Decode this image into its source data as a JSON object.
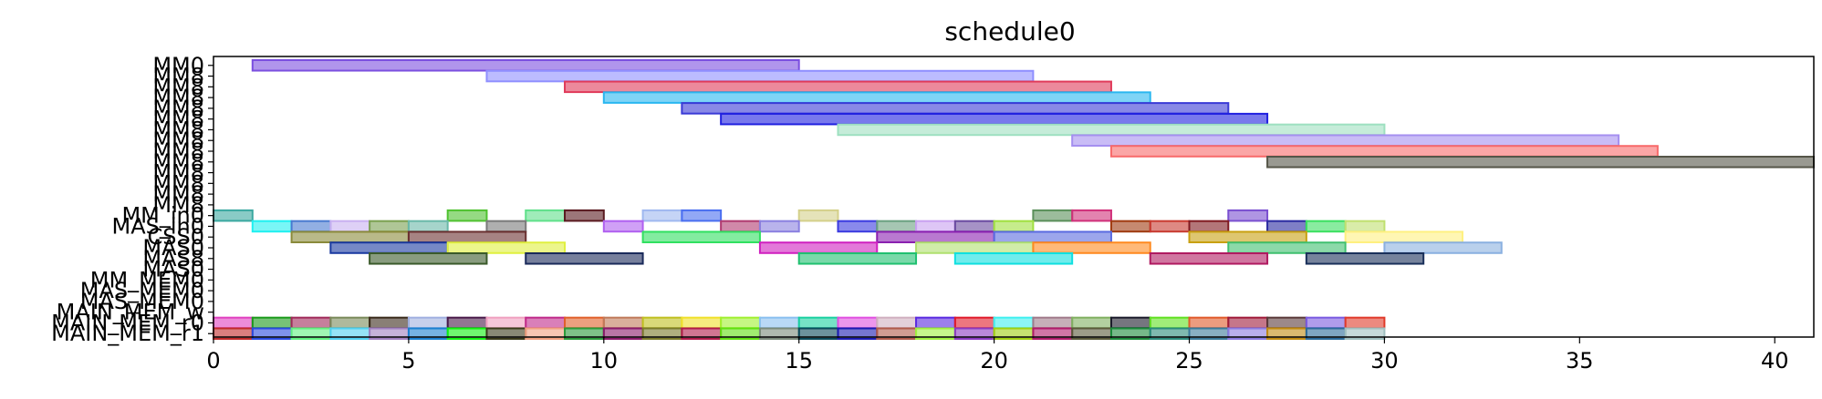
{
  "chart_data": {
    "type": "gantt",
    "title": "schedule0",
    "xlabel": "",
    "ylabel": "",
    "xlim": [
      0,
      41
    ],
    "x_ticks": [
      0,
      5,
      10,
      15,
      20,
      25,
      30,
      35,
      40
    ],
    "grid": false,
    "legend": "none",
    "rows": [
      "MM0",
      "MM8",
      "MM8",
      "MM8",
      "MM8",
      "MM8",
      "MM8",
      "MM8",
      "MM8",
      "MM8",
      "MM8",
      "MM8",
      "MM8",
      "MM8",
      "MM_in0",
      "MAS_in0",
      "CSS0",
      "MAS0",
      "MAS8",
      "MAS0",
      "MM_MEM0",
      "MAS_MEM0",
      "MAS_MEM0",
      "MAIN_MEM_w",
      "MAIN_MEM_r0",
      "MAIN_MEM_r1"
    ],
    "tasks": [
      {
        "row": 0,
        "start": 1,
        "end": 15,
        "color": "#7b4fe0"
      },
      {
        "row": 1,
        "start": 7,
        "end": 21,
        "color": "#8f8fff"
      },
      {
        "row": 2,
        "start": 9,
        "end": 23,
        "color": "#e03a5a"
      },
      {
        "row": 3,
        "start": 10,
        "end": 24,
        "color": "#2ab7f0"
      },
      {
        "row": 4,
        "start": 12,
        "end": 26,
        "color": "#3a3ad6"
      },
      {
        "row": 5,
        "start": 13,
        "end": 27,
        "color": "#2020e0"
      },
      {
        "row": 6,
        "start": 16,
        "end": 30,
        "color": "#9ee0c0"
      },
      {
        "row": 7,
        "start": 22,
        "end": 36,
        "color": "#a58ff0"
      },
      {
        "row": 8,
        "start": 23,
        "end": 37,
        "color": "#f86a6a"
      },
      {
        "row": 9,
        "start": 27,
        "end": 41,
        "color": "#555548"
      },
      {
        "row": 14,
        "start": 0,
        "end": 1,
        "color": "#3aa8a0"
      },
      {
        "row": 14,
        "start": 6,
        "end": 7,
        "color": "#4fc230"
      },
      {
        "row": 14,
        "start": 8,
        "end": 9,
        "color": "#5fe08a"
      },
      {
        "row": 14,
        "start": 9,
        "end": 10,
        "color": "#5a1a20"
      },
      {
        "row": 14,
        "start": 11,
        "end": 12,
        "color": "#9fb8f0"
      },
      {
        "row": 14,
        "start": 12,
        "end": 13,
        "color": "#4a6ef0"
      },
      {
        "row": 14,
        "start": 15,
        "end": 16,
        "color": "#d4d08a"
      },
      {
        "row": 14,
        "start": 21,
        "end": 22,
        "color": "#5a8f5a"
      },
      {
        "row": 14,
        "start": 22,
        "end": 23,
        "color": "#d0307a"
      },
      {
        "row": 14,
        "start": 26,
        "end": 27,
        "color": "#7a4fd0"
      },
      {
        "row": 15,
        "start": 1,
        "end": 2,
        "color": "#1ff0f0"
      },
      {
        "row": 15,
        "start": 2,
        "end": 3,
        "color": "#4a7ad0"
      },
      {
        "row": 15,
        "start": 3,
        "end": 4,
        "color": "#c8b0f0"
      },
      {
        "row": 15,
        "start": 4,
        "end": 5,
        "color": "#7aa050"
      },
      {
        "row": 15,
        "start": 5,
        "end": 6,
        "color": "#6ab8a8"
      },
      {
        "row": 15,
        "start": 7,
        "end": 8,
        "color": "#7a7a7a"
      },
      {
        "row": 15,
        "start": 10,
        "end": 11,
        "color": "#b060f0"
      },
      {
        "row": 15,
        "start": 13,
        "end": 14,
        "color": "#b03a70"
      },
      {
        "row": 15,
        "start": 14,
        "end": 15,
        "color": "#8a80e0"
      },
      {
        "row": 15,
        "start": 16,
        "end": 17,
        "color": "#3a3ae0"
      },
      {
        "row": 15,
        "start": 17,
        "end": 18,
        "color": "#6aa080"
      },
      {
        "row": 15,
        "start": 18,
        "end": 19,
        "color": "#c8a0f0"
      },
      {
        "row": 15,
        "start": 19,
        "end": 20,
        "color": "#6a4aa0"
      },
      {
        "row": 15,
        "start": 20,
        "end": 21,
        "color": "#a0e040"
      },
      {
        "row": 15,
        "start": 23,
        "end": 24,
        "color": "#a03a10"
      },
      {
        "row": 15,
        "start": 24,
        "end": 25,
        "color": "#c83a30"
      },
      {
        "row": 15,
        "start": 25,
        "end": 26,
        "color": "#801a20"
      },
      {
        "row": 15,
        "start": 27,
        "end": 28,
        "color": "#2a2aa0"
      },
      {
        "row": 15,
        "start": 28,
        "end": 29,
        "color": "#3ae060"
      },
      {
        "row": 15,
        "start": 29,
        "end": 30,
        "color": "#c0e070"
      },
      {
        "row": 16,
        "start": 2,
        "end": 5,
        "color": "#8a8a3a"
      },
      {
        "row": 16,
        "start": 5,
        "end": 8,
        "color": "#6a3030"
      },
      {
        "row": 16,
        "start": 11,
        "end": 14,
        "color": "#30e060"
      },
      {
        "row": 16,
        "start": 17,
        "end": 20,
        "color": "#8a20b0"
      },
      {
        "row": 16,
        "start": 20,
        "end": 23,
        "color": "#5a6ae0"
      },
      {
        "row": 16,
        "start": 25,
        "end": 28,
        "color": "#c8a010"
      },
      {
        "row": 16,
        "start": 29,
        "end": 32,
        "color": "#fff080"
      },
      {
        "row": 17,
        "start": 3,
        "end": 6,
        "color": "#1a3aa0"
      },
      {
        "row": 17,
        "start": 6,
        "end": 9,
        "color": "#e0f040"
      },
      {
        "row": 17,
        "start": 14,
        "end": 17,
        "color": "#d020c0"
      },
      {
        "row": 17,
        "start": 18,
        "end": 21,
        "color": "#b0e070"
      },
      {
        "row": 17,
        "start": 21,
        "end": 24,
        "color": "#ff8a20"
      },
      {
        "row": 17,
        "start": 26,
        "end": 29,
        "color": "#40c070"
      },
      {
        "row": 17,
        "start": 30,
        "end": 33,
        "color": "#8ab0e0"
      },
      {
        "row": 18,
        "start": 4,
        "end": 7,
        "color": "#3a5a2a"
      },
      {
        "row": 18,
        "start": 8,
        "end": 11,
        "color": "#1a2a5a"
      },
      {
        "row": 18,
        "start": 15,
        "end": 18,
        "color": "#20c070"
      },
      {
        "row": 18,
        "start": 19,
        "end": 22,
        "color": "#10e0e0"
      },
      {
        "row": 18,
        "start": 24,
        "end": 27,
        "color": "#b01a60"
      },
      {
        "row": 18,
        "start": 28,
        "end": 31,
        "color": "#1a305a"
      },
      {
        "row": 24,
        "start": 0,
        "end": 1,
        "color": "#e040c0"
      },
      {
        "row": 24,
        "start": 1,
        "end": 2,
        "color": "#1a9a1a"
      },
      {
        "row": 24,
        "start": 2,
        "end": 3,
        "color": "#a02a5a"
      },
      {
        "row": 24,
        "start": 3,
        "end": 4,
        "color": "#7a8a5a"
      },
      {
        "row": 24,
        "start": 4,
        "end": 5,
        "color": "#3a2a1a"
      },
      {
        "row": 24,
        "start": 5,
        "end": 6,
        "color": "#a0b0e0"
      },
      {
        "row": 24,
        "start": 6,
        "end": 7,
        "color": "#4a1a4a"
      },
      {
        "row": 24,
        "start": 7,
        "end": 8,
        "color": "#f0a0c0"
      },
      {
        "row": 24,
        "start": 8,
        "end": 9,
        "color": "#c02a8a"
      },
      {
        "row": 24,
        "start": 9,
        "end": 10,
        "color": "#e0602a"
      },
      {
        "row": 24,
        "start": 10,
        "end": 11,
        "color": "#c07a5a"
      },
      {
        "row": 24,
        "start": 11,
        "end": 12,
        "color": "#c0c020"
      },
      {
        "row": 24,
        "start": 12,
        "end": 13,
        "color": "#f0e02a"
      },
      {
        "row": 24,
        "start": 13,
        "end": 14,
        "color": "#a0f030"
      },
      {
        "row": 24,
        "start": 14,
        "end": 15,
        "color": "#8ac0f0"
      },
      {
        "row": 24,
        "start": 15,
        "end": 16,
        "color": "#1ad0a0"
      },
      {
        "row": 24,
        "start": 16,
        "end": 17,
        "color": "#e050e0"
      },
      {
        "row": 24,
        "start": 17,
        "end": 18,
        "color": "#d0b0c0"
      },
      {
        "row": 24,
        "start": 18,
        "end": 19,
        "color": "#5a2ae0"
      },
      {
        "row": 24,
        "start": 19,
        "end": 20,
        "color": "#e01a2a"
      },
      {
        "row": 24,
        "start": 20,
        "end": 21,
        "color": "#40f0f0"
      },
      {
        "row": 24,
        "start": 21,
        "end": 22,
        "color": "#a07a8a"
      },
      {
        "row": 24,
        "start": 22,
        "end": 23,
        "color": "#80b060"
      },
      {
        "row": 24,
        "start": 23,
        "end": 24,
        "color": "#1a1a2a"
      },
      {
        "row": 24,
        "start": 24,
        "end": 25,
        "color": "#60e020"
      },
      {
        "row": 24,
        "start": 25,
        "end": 26,
        "color": "#e05a2a"
      },
      {
        "row": 24,
        "start": 26,
        "end": 27,
        "color": "#a01a3a"
      },
      {
        "row": 24,
        "start": 27,
        "end": 28,
        "color": "#5a3a3a"
      },
      {
        "row": 24,
        "start": 28,
        "end": 29,
        "color": "#7a5ae0"
      },
      {
        "row": 24,
        "start": 29,
        "end": 30,
        "color": "#e03a2a"
      },
      {
        "row": 25,
        "start": 0,
        "end": 1,
        "color": "#c02a2a"
      },
      {
        "row": 25,
        "start": 1,
        "end": 2,
        "color": "#2a4ae0"
      },
      {
        "row": 25,
        "start": 2,
        "end": 3,
        "color": "#60f080"
      },
      {
        "row": 25,
        "start": 3,
        "end": 4,
        "color": "#50d0f0"
      },
      {
        "row": 25,
        "start": 4,
        "end": 5,
        "color": "#a080c0"
      },
      {
        "row": 25,
        "start": 5,
        "end": 6,
        "color": "#1a80d0"
      },
      {
        "row": 25,
        "start": 6,
        "end": 7,
        "color": "#10f010"
      },
      {
        "row": 25,
        "start": 7,
        "end": 8,
        "color": "#3a3a1a"
      },
      {
        "row": 25,
        "start": 8,
        "end": 9,
        "color": "#f0a080"
      },
      {
        "row": 25,
        "start": 9,
        "end": 10,
        "color": "#2a9a3a"
      },
      {
        "row": 25,
        "start": 10,
        "end": 11,
        "color": "#8a1a6a"
      },
      {
        "row": 25,
        "start": 11,
        "end": 12,
        "color": "#7a7a2a"
      },
      {
        "row": 25,
        "start": 12,
        "end": 13,
        "color": "#b01a4a"
      },
      {
        "row": 25,
        "start": 13,
        "end": 14,
        "color": "#60e010"
      },
      {
        "row": 25,
        "start": 14,
        "end": 15,
        "color": "#7a8a7a"
      },
      {
        "row": 25,
        "start": 15,
        "end": 16,
        "color": "#0a4a5a"
      },
      {
        "row": 25,
        "start": 16,
        "end": 17,
        "color": "#1a1ab0"
      },
      {
        "row": 25,
        "start": 17,
        "end": 18,
        "color": "#b05a4a"
      },
      {
        "row": 25,
        "start": 18,
        "end": 19,
        "color": "#a0f040"
      },
      {
        "row": 25,
        "start": 19,
        "end": 20,
        "color": "#8a3ac0"
      },
      {
        "row": 25,
        "start": 20,
        "end": 21,
        "color": "#a0d010"
      },
      {
        "row": 25,
        "start": 21,
        "end": 22,
        "color": "#b01a6a"
      },
      {
        "row": 25,
        "start": 22,
        "end": 23,
        "color": "#5a5a3a"
      },
      {
        "row": 25,
        "start": 23,
        "end": 24,
        "color": "#1a8a3a"
      },
      {
        "row": 25,
        "start": 24,
        "end": 25,
        "color": "#2a8a7a"
      },
      {
        "row": 25,
        "start": 25,
        "end": 26,
        "color": "#3a7a9a"
      },
      {
        "row": 25,
        "start": 26,
        "end": 27,
        "color": "#8a7ae0"
      },
      {
        "row": 25,
        "start": 27,
        "end": 28,
        "color": "#c08a10"
      },
      {
        "row": 25,
        "start": 28,
        "end": 29,
        "color": "#2a6a9a"
      },
      {
        "row": 25,
        "start": 29,
        "end": 30,
        "color": "#a0c0c0"
      }
    ]
  }
}
